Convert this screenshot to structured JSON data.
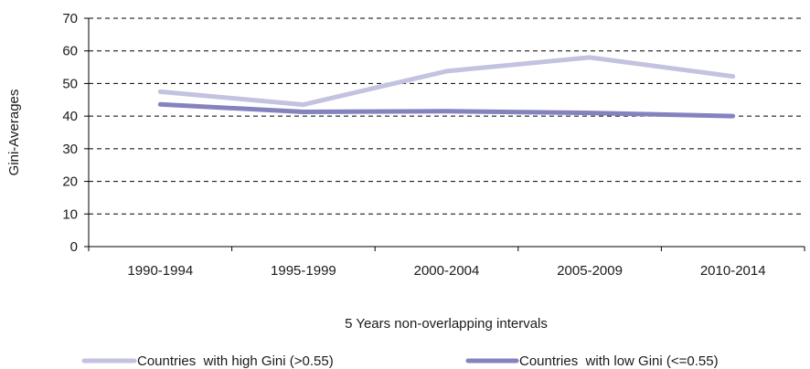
{
  "chart_data": {
    "type": "line",
    "title": "",
    "xlabel": "5 Years non-overlapping intervals",
    "ylabel": "Gini-Averages",
    "categories": [
      "1990-1994",
      "1995-1999",
      "2000-2004",
      "2005-2009",
      "2010-2014"
    ],
    "ylim": [
      0,
      70
    ],
    "yticks": [
      0,
      10,
      20,
      30,
      40,
      50,
      60,
      70
    ],
    "grid": "horizontal-dashed",
    "legend": "bottom",
    "series": [
      {
        "name": "Countries  with high Gini (>0.55)",
        "values": [
          47.5,
          43.5,
          53.8,
          58.0,
          52.2
        ],
        "color": "#c3c2e0"
      },
      {
        "name": "Countries  with low Gini (<=0.55)",
        "values": [
          43.6,
          41.3,
          41.5,
          41.0,
          40.0
        ],
        "color": "#8583bf"
      }
    ]
  }
}
